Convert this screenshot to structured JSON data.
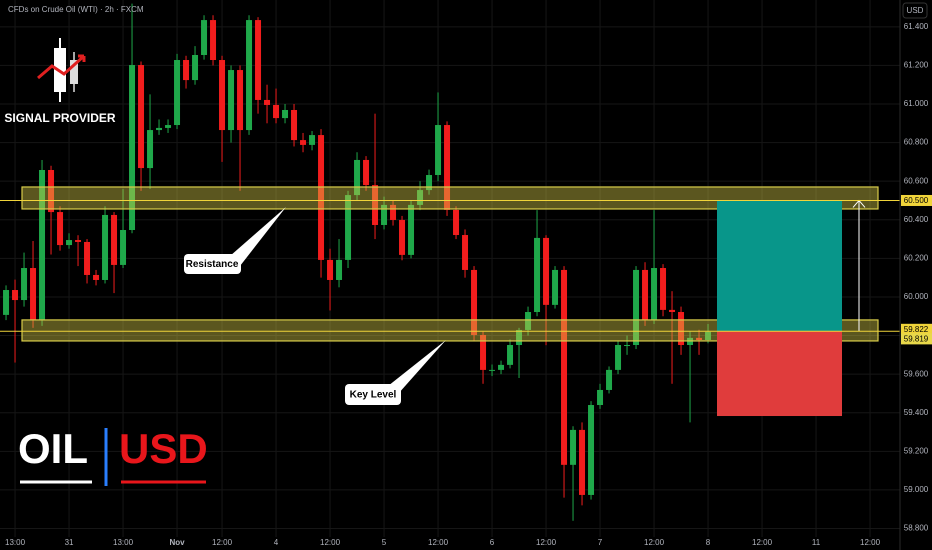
{
  "header": {
    "symbol_title": "CFDs on Crude Oil (WTI) · 2h · FXCM",
    "currency": "USD"
  },
  "branding": {
    "name": "SIGNAL PROVIDER",
    "asset": "OIL",
    "quote": "USD"
  },
  "chart_data": {
    "type": "candlestick",
    "up_color": "#1fa84a",
    "down_color": "#f21d1d",
    "open": [
      59.907,
      60.036,
      59.984,
      60.15,
      59.881,
      60.658,
      60.44,
      60.269,
      60.295,
      60.285,
      60.114,
      60.088,
      60.425,
      60.166,
      60.347,
      61.202,
      60.668,
      60.865,
      60.876,
      60.891,
      61.228,
      61.124,
      61.254,
      61.435,
      61.228,
      60.865,
      61.176,
      60.865,
      61.435,
      61.021,
      60.995,
      60.927,
      60.969,
      60.813,
      60.788,
      60.839,
      60.192,
      60.088,
      60.192,
      60.528,
      60.71,
      60.58,
      60.373,
      60.477,
      60.399,
      60.218,
      60.477,
      60.554,
      60.632,
      60.891,
      60.451,
      60.321,
      60.14,
      59.803,
      59.622,
      59.622,
      59.648,
      59.751,
      59.829,
      59.922,
      60.306,
      59.959,
      60.14,
      59.13,
      59.311,
      58.974,
      59.44,
      59.518,
      59.622,
      59.751,
      59.751,
      60.14,
      59.881,
      60.15,
      59.933,
      59.922,
      59.751,
      59.788,
      59.777
    ],
    "high": [
      60.06,
      60.09,
      60.23,
      60.29,
      60.71,
      60.68,
      60.47,
      60.33,
      60.32,
      60.3,
      60.14,
      60.47,
      60.44,
      60.56,
      61.52,
      61.22,
      61.05,
      60.92,
      60.92,
      61.26,
      61.25,
      61.3,
      61.46,
      61.46,
      61.25,
      61.2,
      61.2,
      61.46,
      61.45,
      61.1,
      61.08,
      61.0,
      61.0,
      60.85,
      60.86,
      60.87,
      60.25,
      60.3,
      60.55,
      60.75,
      60.73,
      60.95,
      60.52,
      60.5,
      60.42,
      60.5,
      60.6,
      60.66,
      61.06,
      60.91,
      60.47,
      60.35,
      60.16,
      59.82,
      59.65,
      59.67,
      59.78,
      59.84,
      59.95,
      60.45,
      60.32,
      60.16,
      60.16,
      59.33,
      59.35,
      59.46,
      59.55,
      59.64,
      59.77,
      59.8,
      60.16,
      60.18,
      60.45,
      60.17,
      60.03,
      59.95,
      59.82,
      59.83,
      59.86
    ],
    "low": [
      59.88,
      59.66,
      59.95,
      59.84,
      59.85,
      60.22,
      60.24,
      60.25,
      60.16,
      60.07,
      60.06,
      60.07,
      60.02,
      60.15,
      60.33,
      60.55,
      60.56,
      60.84,
      60.85,
      60.87,
      61.08,
      61.1,
      61.23,
      61.2,
      60.7,
      60.8,
      60.55,
      60.84,
      60.95,
      60.9,
      60.9,
      60.9,
      60.78,
      60.75,
      60.76,
      60.1,
      59.93,
      60.05,
      60.15,
      60.5,
      60.55,
      60.3,
      60.35,
      60.37,
      60.19,
      60.2,
      60.45,
      60.53,
      60.6,
      60.42,
      60.3,
      60.1,
      59.77,
      59.55,
      59.59,
      59.6,
      59.63,
      59.58,
      59.8,
      59.9,
      59.75,
      59.94,
      58.96,
      58.84,
      58.92,
      58.95,
      59.42,
      59.5,
      59.6,
      59.7,
      59.73,
      59.85,
      59.86,
      59.9,
      59.55,
      59.7,
      59.35,
      59.7,
      59.76
    ],
    "close": [
      60.036,
      59.984,
      60.15,
      59.881,
      60.658,
      60.44,
      60.269,
      60.295,
      60.285,
      60.114,
      60.088,
      60.425,
      60.166,
      60.347,
      61.202,
      60.668,
      60.865,
      60.876,
      60.891,
      61.228,
      61.124,
      61.254,
      61.435,
      61.228,
      60.865,
      61.176,
      60.865,
      61.435,
      61.021,
      60.995,
      60.927,
      60.969,
      60.813,
      60.788,
      60.839,
      60.192,
      60.088,
      60.192,
      60.528,
      60.71,
      60.58,
      60.373,
      60.477,
      60.399,
      60.218,
      60.477,
      60.554,
      60.632,
      60.891,
      60.451,
      60.321,
      60.14,
      59.803,
      59.622,
      59.622,
      59.648,
      59.751,
      59.829,
      59.922,
      60.306,
      59.959,
      60.14,
      59.13,
      59.311,
      58.974,
      59.44,
      59.518,
      59.622,
      59.751,
      59.751,
      60.14,
      59.881,
      60.15,
      59.933,
      59.922,
      59.751,
      59.788,
      59.777,
      59.819
    ],
    "xlim": [
      -0.67,
      99.33
    ],
    "xticks": [
      {
        "value": 1,
        "label": "13:00"
      },
      {
        "value": 7,
        "label": "31"
      },
      {
        "value": 13,
        "label": "13:00"
      },
      {
        "value": 19,
        "label": "Nov"
      },
      {
        "value": 24,
        "label": "12:00"
      },
      {
        "value": 30,
        "label": "4"
      },
      {
        "value": 36,
        "label": "12:00"
      },
      {
        "value": 42,
        "label": "5"
      },
      {
        "value": 48,
        "label": "12:00"
      },
      {
        "value": 54,
        "label": "6"
      },
      {
        "value": 60,
        "label": "12:00"
      },
      {
        "value": 66,
        "label": "7"
      },
      {
        "value": 72,
        "label": "12:00"
      },
      {
        "value": 78,
        "label": "8"
      },
      {
        "value": 84,
        "label": "12:00"
      },
      {
        "value": 90,
        "label": "11"
      },
      {
        "value": 96,
        "label": "12:00"
      }
    ],
    "ylim": [
      58.756,
      61.539
    ],
    "yticks": [
      {
        "value": 58.8,
        "label": "58.800"
      },
      {
        "value": 59.0,
        "label": "59.000"
      },
      {
        "value": 59.2,
        "label": "59.200"
      },
      {
        "value": 59.4,
        "label": "59.400"
      },
      {
        "value": 59.6,
        "label": "59.600"
      },
      {
        "value": 59.8,
        "label": "59.800"
      },
      {
        "value": 60.0,
        "label": "60.000"
      },
      {
        "value": 60.2,
        "label": "60.200"
      },
      {
        "value": 60.4,
        "label": "60.400"
      },
      {
        "value": 60.6,
        "label": "60.600"
      },
      {
        "value": 60.8,
        "label": "60.800"
      },
      {
        "value": 61.0,
        "label": "61.000"
      },
      {
        "value": 61.2,
        "label": "61.200"
      },
      {
        "value": 61.4,
        "label": "61.400"
      }
    ],
    "grid": true,
    "zone_color": "#d8cc4a",
    "zones": [
      {
        "low": 60.456,
        "high": 60.57
      },
      {
        "low": 59.772,
        "high": 59.881
      }
    ],
    "levels": [
      {
        "value": 60.5,
        "label": "60.500"
      },
      59.822
    ],
    "level_color": "#f0d43a",
    "position": {
      "entry": 59.822,
      "target": 60.5,
      "stop": 59.383,
      "target_color": "#08968a",
      "stop_color": "#e03c3c"
    },
    "annotations": [
      "Resistance",
      "Key Level"
    ]
  }
}
